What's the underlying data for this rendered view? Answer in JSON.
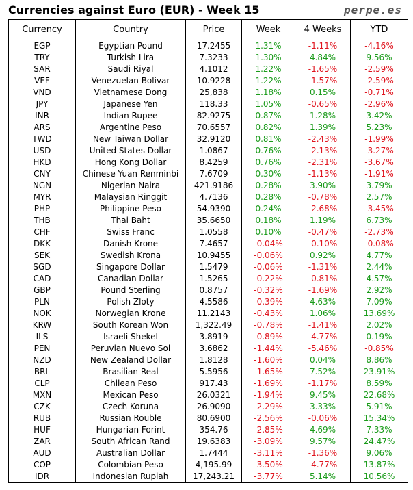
{
  "header": {
    "title": "Currencies against Euro (EUR) - Week 15",
    "brand": "perpe.es"
  },
  "colors": {
    "positive": "#1a9b1a",
    "negative": "#e0141e"
  },
  "table": {
    "columns": [
      "Currency",
      "Country",
      "Price",
      "Week",
      "4 Weeks",
      "YTD"
    ],
    "rows": [
      [
        "EGP",
        "Egyptian Pound",
        "17.2455",
        "1.31%",
        "-1.11%",
        "-4.16%"
      ],
      [
        "TRY",
        "Turkish Lira",
        "7.3233",
        "1.30%",
        "4.84%",
        "9.56%"
      ],
      [
        "SAR",
        "Saudi Riyal",
        "4.1012",
        "1.22%",
        "-1.65%",
        "-2.59%"
      ],
      [
        "VEF",
        "Venezuelan Bolivar",
        "10.9228",
        "1.22%",
        "-1.57%",
        "-2.59%"
      ],
      [
        "VND",
        "Vietnamese Dong",
        "25,838",
        "1.18%",
        "0.15%",
        "-0.71%"
      ],
      [
        "JPY",
        "Japanese Yen",
        "118.33",
        "1.05%",
        "-0.65%",
        "-2.96%"
      ],
      [
        "INR",
        "Indian Rupee",
        "82.9275",
        "0.87%",
        "1.28%",
        "3.42%"
      ],
      [
        "ARS",
        "Argentine Peso",
        "70.6557",
        "0.82%",
        "1.39%",
        "5.23%"
      ],
      [
        "TWD",
        "New Taiwan Dollar",
        "32.9120",
        "0.81%",
        "-2.43%",
        "-1.99%"
      ],
      [
        "USD",
        "United States Dollar",
        "1.0867",
        "0.76%",
        "-2.13%",
        "-3.27%"
      ],
      [
        "HKD",
        "Hong Kong Dollar",
        "8.4259",
        "0.76%",
        "-2.31%",
        "-3.67%"
      ],
      [
        "CNY",
        "Chinese Yuan Renminbi",
        "7.6709",
        "0.30%",
        "-1.13%",
        "-1.91%"
      ],
      [
        "NGN",
        "Nigerian Naira",
        "421.9186",
        "0.28%",
        "3.90%",
        "3.79%"
      ],
      [
        "MYR",
        "Malaysian Ringgit",
        "4.7136",
        "0.28%",
        "-0.78%",
        "2.57%"
      ],
      [
        "PHP",
        "Philippine Peso",
        "54.9390",
        "0.24%",
        "-2.68%",
        "-3.45%"
      ],
      [
        "THB",
        "Thai Baht",
        "35.6650",
        "0.18%",
        "1.19%",
        "6.73%"
      ],
      [
        "CHF",
        "Swiss Franc",
        "1.0558",
        "0.10%",
        "-0.47%",
        "-2.73%"
      ],
      [
        "DKK",
        "Danish Krone",
        "7.4657",
        "-0.04%",
        "-0.10%",
        "-0.08%"
      ],
      [
        "SEK",
        "Swedish Krona",
        "10.9455",
        "-0.06%",
        "0.92%",
        "4.77%"
      ],
      [
        "SGD",
        "Singapore Dollar",
        "1.5479",
        "-0.06%",
        "-1.31%",
        "2.44%"
      ],
      [
        "CAD",
        "Canadian Dollar",
        "1.5265",
        "-0.22%",
        "-0.81%",
        "4.57%"
      ],
      [
        "GBP",
        "Pound Sterling",
        "0.8757",
        "-0.32%",
        "-1.69%",
        "2.92%"
      ],
      [
        "PLN",
        "Polish Zloty",
        "4.5586",
        "-0.39%",
        "4.63%",
        "7.09%"
      ],
      [
        "NOK",
        "Norwegian Krone",
        "11.2143",
        "-0.43%",
        "1.06%",
        "13.69%"
      ],
      [
        "KRW",
        "South Korean Won",
        "1,322.49",
        "-0.78%",
        "-1.41%",
        "2.02%"
      ],
      [
        "ILS",
        "Israeli Shekel",
        "3.8919",
        "-0.89%",
        "-4.77%",
        "0.19%"
      ],
      [
        "PEN",
        "Peruvian Nuevo Sol",
        "3.6862",
        "-1.44%",
        "-5.46%",
        "-0.85%"
      ],
      [
        "NZD",
        "New Zealand Dollar",
        "1.8128",
        "-1.60%",
        "0.04%",
        "8.86%"
      ],
      [
        "BRL",
        "Brasilian Real",
        "5.5956",
        "-1.65%",
        "7.52%",
        "23.91%"
      ],
      [
        "CLP",
        "Chilean Peso",
        "917.43",
        "-1.69%",
        "-1.17%",
        "8.59%"
      ],
      [
        "MXN",
        "Mexican Peso",
        "26.0321",
        "-1.94%",
        "9.45%",
        "22.68%"
      ],
      [
        "CZK",
        "Czech Koruna",
        "26.9090",
        "-2.29%",
        "3.33%",
        "5.91%"
      ],
      [
        "RUB",
        "Russian Rouble",
        "80.6900",
        "-2.56%",
        "-0.06%",
        "15.34%"
      ],
      [
        "HUF",
        "Hungarian Forint",
        "354.76",
        "-2.85%",
        "4.69%",
        "7.33%"
      ],
      [
        "ZAR",
        "South African Rand",
        "19.6383",
        "-3.09%",
        "9.57%",
        "24.47%"
      ],
      [
        "AUD",
        "Australian Dollar",
        "1.7444",
        "-3.11%",
        "-1.36%",
        "9.06%"
      ],
      [
        "COP",
        "Colombian Peso",
        "4,195.99",
        "-3.50%",
        "-4.77%",
        "13.87%"
      ],
      [
        "IDR",
        "Indonesian Rupiah",
        "17,243.21",
        "-3.77%",
        "5.14%",
        "10.56%"
      ]
    ]
  }
}
